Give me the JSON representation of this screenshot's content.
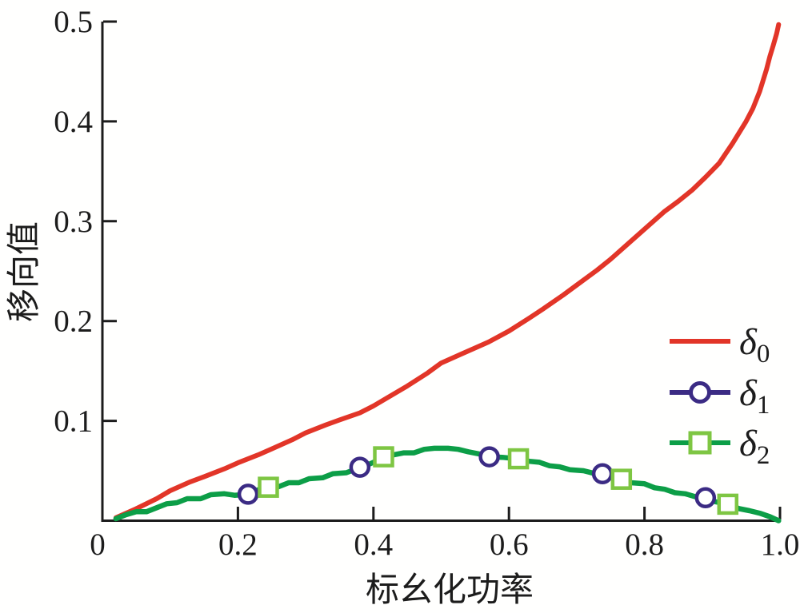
{
  "figure": {
    "background": "#fffffe",
    "axis_color": "#1c1c1c"
  },
  "chart_data": {
    "type": "line",
    "title": "",
    "xlabel": "标幺化功率",
    "ylabel": "移向值",
    "xlim": [
      0,
      1.0
    ],
    "ylim": [
      0,
      0.5
    ],
    "grid": false,
    "legend_position": "inside lower-right",
    "xticks": {
      "values": [
        0,
        0.2,
        0.4,
        0.6,
        0.8,
        1.0
      ],
      "labels": [
        "0",
        "0.2",
        "0.4",
        "0.6",
        "0.8",
        "1.0"
      ]
    },
    "yticks": {
      "values": [
        0.1,
        0.2,
        0.3,
        0.4,
        0.5
      ],
      "labels": [
        "0.1",
        "0.2",
        "0.3",
        "0.4",
        "0.5"
      ]
    },
    "series": [
      {
        "name": "delta0",
        "color": "#e23528",
        "line_width": 6,
        "marker": "none",
        "points": [
          [
            0.02,
            0.003
          ],
          [
            0.05,
            0.012
          ],
          [
            0.08,
            0.022
          ],
          [
            0.1,
            0.03
          ],
          [
            0.13,
            0.039
          ],
          [
            0.15,
            0.044
          ],
          [
            0.18,
            0.052
          ],
          [
            0.2,
            0.058
          ],
          [
            0.23,
            0.066
          ],
          [
            0.25,
            0.072
          ],
          [
            0.28,
            0.081
          ],
          [
            0.3,
            0.088
          ],
          [
            0.33,
            0.096
          ],
          [
            0.35,
            0.101
          ],
          [
            0.38,
            0.108
          ],
          [
            0.4,
            0.115
          ],
          [
            0.43,
            0.127
          ],
          [
            0.45,
            0.135
          ],
          [
            0.48,
            0.148
          ],
          [
            0.5,
            0.158
          ],
          [
            0.53,
            0.167
          ],
          [
            0.55,
            0.173
          ],
          [
            0.57,
            0.179
          ],
          [
            0.6,
            0.19
          ],
          [
            0.63,
            0.203
          ],
          [
            0.65,
            0.212
          ],
          [
            0.68,
            0.226
          ],
          [
            0.7,
            0.236
          ],
          [
            0.73,
            0.251
          ],
          [
            0.75,
            0.262
          ],
          [
            0.78,
            0.28
          ],
          [
            0.8,
            0.292
          ],
          [
            0.83,
            0.31
          ],
          [
            0.85,
            0.32
          ],
          [
            0.87,
            0.331
          ],
          [
            0.89,
            0.344
          ],
          [
            0.91,
            0.358
          ],
          [
            0.93,
            0.378
          ],
          [
            0.95,
            0.4
          ],
          [
            0.96,
            0.413
          ],
          [
            0.97,
            0.43
          ],
          [
            0.98,
            0.452
          ],
          [
            0.985,
            0.465
          ],
          [
            0.99,
            0.476
          ],
          [
            0.995,
            0.488
          ],
          [
            0.998,
            0.497
          ]
        ]
      },
      {
        "name": "delta1",
        "color": "#3b2b84",
        "line_width": 5,
        "marker": "circle",
        "marker_fill": "#ffffff",
        "line_hidden": true,
        "points": [
          [
            0.215,
            0.0265
          ],
          [
            0.38,
            0.0535
          ],
          [
            0.571,
            0.064
          ],
          [
            0.738,
            0.047
          ],
          [
            0.89,
            0.023
          ]
        ]
      },
      {
        "name": "delta2",
        "color": "#0c9e47",
        "line_width": 6.5,
        "marker": "square",
        "marker_color": "#7ec643",
        "marker_fill": "#ffffff",
        "marker_points": [
          [
            0.245,
            0.0335
          ],
          [
            0.415,
            0.064
          ],
          [
            0.614,
            0.062
          ],
          [
            0.766,
            0.0415
          ],
          [
            0.923,
            0.0165
          ]
        ],
        "points": [
          [
            0.02,
            0.002
          ],
          [
            0.035,
            0.006
          ],
          [
            0.05,
            0.009
          ],
          [
            0.065,
            0.009
          ],
          [
            0.08,
            0.013
          ],
          [
            0.095,
            0.017
          ],
          [
            0.11,
            0.018
          ],
          [
            0.125,
            0.022
          ],
          [
            0.145,
            0.022
          ],
          [
            0.16,
            0.026
          ],
          [
            0.18,
            0.027
          ],
          [
            0.195,
            0.0255
          ],
          [
            0.215,
            0.0265
          ],
          [
            0.23,
            0.031
          ],
          [
            0.245,
            0.0335
          ],
          [
            0.26,
            0.034
          ],
          [
            0.275,
            0.038
          ],
          [
            0.29,
            0.038
          ],
          [
            0.305,
            0.042
          ],
          [
            0.325,
            0.043
          ],
          [
            0.34,
            0.047
          ],
          [
            0.36,
            0.048
          ],
          [
            0.375,
            0.052
          ],
          [
            0.38,
            0.0535
          ],
          [
            0.395,
            0.057
          ],
          [
            0.405,
            0.06
          ],
          [
            0.415,
            0.064
          ],
          [
            0.43,
            0.066
          ],
          [
            0.445,
            0.068
          ],
          [
            0.46,
            0.068
          ],
          [
            0.475,
            0.0715
          ],
          [
            0.49,
            0.0725
          ],
          [
            0.51,
            0.0725
          ],
          [
            0.525,
            0.0715
          ],
          [
            0.54,
            0.069
          ],
          [
            0.555,
            0.067
          ],
          [
            0.571,
            0.064
          ],
          [
            0.59,
            0.0635
          ],
          [
            0.614,
            0.062
          ],
          [
            0.63,
            0.0595
          ],
          [
            0.645,
            0.0585
          ],
          [
            0.66,
            0.055
          ],
          [
            0.675,
            0.054
          ],
          [
            0.69,
            0.051
          ],
          [
            0.71,
            0.05
          ],
          [
            0.725,
            0.0475
          ],
          [
            0.738,
            0.047
          ],
          [
            0.752,
            0.044
          ],
          [
            0.766,
            0.0415
          ],
          [
            0.78,
            0.038
          ],
          [
            0.8,
            0.037
          ],
          [
            0.815,
            0.033
          ],
          [
            0.83,
            0.0315
          ],
          [
            0.845,
            0.028
          ],
          [
            0.86,
            0.027
          ],
          [
            0.875,
            0.024
          ],
          [
            0.89,
            0.023
          ],
          [
            0.905,
            0.019
          ],
          [
            0.923,
            0.0165
          ],
          [
            0.94,
            0.012
          ],
          [
            0.955,
            0.01
          ],
          [
            0.97,
            0.0075
          ],
          [
            0.985,
            0.004
          ],
          [
            0.998,
            0.0
          ]
        ]
      }
    ],
    "legend": [
      {
        "symbol": "δ",
        "sub": "0",
        "line_color": "#e23528",
        "marker": "none"
      },
      {
        "symbol": "δ",
        "sub": "1",
        "line_color": "#3b2b84",
        "marker": "circle"
      },
      {
        "symbol": "δ",
        "sub": "2",
        "line_color": "#0c9e47",
        "marker": "square",
        "marker_color": "#7ec643"
      }
    ]
  }
}
